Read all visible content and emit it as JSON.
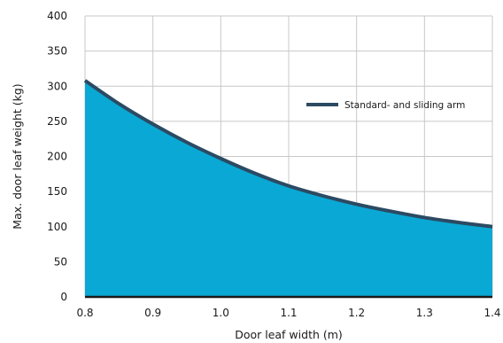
{
  "chart_data": {
    "type": "area",
    "title": "",
    "xlabel": "Door leaf width (m)",
    "ylabel": "Max. door leaf weight (kg)",
    "xlim": [
      0.8,
      1.4
    ],
    "ylim": [
      0,
      400
    ],
    "x_ticks": [
      "0.8",
      "0.9",
      "1.0",
      "1.1",
      "1.2",
      "1.3",
      "1.4"
    ],
    "y_ticks": [
      "0",
      "50",
      "100",
      "150",
      "200",
      "250",
      "300",
      "350",
      "400"
    ],
    "grid": true,
    "legend_position": "top-right",
    "series": [
      {
        "name": "Standard- and sliding arm",
        "x": [
          0.8,
          0.85,
          0.9,
          0.95,
          1.0,
          1.05,
          1.1,
          1.15,
          1.2,
          1.25,
          1.3,
          1.35,
          1.4
        ],
        "y": [
          308,
          275,
          246,
          220,
          197,
          176,
          158,
          144,
          132,
          122,
          113,
          106,
          100
        ]
      }
    ],
    "colors": {
      "fill": "#0aa8d4",
      "line": "#2b4a63",
      "grid": "#c8c8c8",
      "axis": "#1a1a1a"
    }
  }
}
